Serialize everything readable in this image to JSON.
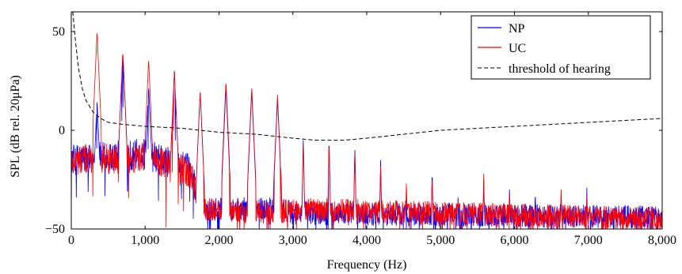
{
  "chart_data": {
    "type": "line",
    "xlabel": "Frequency (Hz)",
    "ylabel": "SPL (dB rel. 20μPa)",
    "xlim": [
      0,
      8000
    ],
    "ylim": [
      -50,
      60
    ],
    "xticks": [
      0,
      1000,
      2000,
      3000,
      4000,
      5000,
      6000,
      7000,
      8000
    ],
    "xtick_labels": [
      "0",
      "1,000",
      "2,000",
      "3,000",
      "4,000",
      "5,000",
      "6,000",
      "7,000",
      "8,000"
    ],
    "yticks": [
      -50,
      0,
      50
    ],
    "ytick_labels": [
      "−50",
      "0",
      "50"
    ],
    "grid": false,
    "legend_position": "top-right",
    "series": [
      {
        "name": "NP",
        "color": "#0000ff",
        "style": "solid",
        "fundamental_hz": 349,
        "harmonic_peaks_db": [
          [
            349,
            15
          ],
          [
            698,
            40
          ],
          [
            1047,
            22
          ],
          [
            1396,
            30
          ],
          [
            1745,
            20
          ],
          [
            2094,
            22
          ],
          [
            2443,
            20
          ],
          [
            2792,
            16
          ],
          [
            3141,
            -3
          ],
          [
            3490,
            -4
          ],
          [
            3839,
            -8
          ],
          [
            4188,
            -15
          ],
          [
            4537,
            -28
          ],
          [
            4886,
            -20
          ],
          [
            5235,
            -32
          ],
          [
            5584,
            -25
          ],
          [
            5933,
            -28
          ],
          [
            6282,
            -30
          ],
          [
            6631,
            -34
          ],
          [
            6980,
            -29
          ],
          [
            7329,
            -38
          ],
          [
            7678,
            -40
          ],
          [
            7980,
            -42
          ]
        ],
        "broadband_floor": [
          [
            0,
            -15
          ],
          [
            1000,
            -12
          ],
          [
            1600,
            -20
          ],
          [
            1800,
            -40
          ],
          [
            2800,
            -40
          ],
          [
            3000,
            -42
          ],
          [
            8000,
            -44
          ]
        ]
      },
      {
        "name": "UC",
        "color": "#ff0000",
        "style": "solid",
        "fundamental_hz": 349,
        "harmonic_peaks_db": [
          [
            349,
            50
          ],
          [
            698,
            40
          ],
          [
            1047,
            36
          ],
          [
            1396,
            30
          ],
          [
            1745,
            20
          ],
          [
            2094,
            25
          ],
          [
            2443,
            22
          ],
          [
            2792,
            18
          ],
          [
            3141,
            -5
          ],
          [
            3490,
            -5
          ],
          [
            3839,
            -10
          ],
          [
            4188,
            -18
          ],
          [
            4537,
            -25
          ],
          [
            4886,
            -22
          ],
          [
            5235,
            -33
          ],
          [
            5584,
            -22
          ],
          [
            5933,
            -30
          ],
          [
            6282,
            -35
          ],
          [
            6631,
            -28
          ],
          [
            6980,
            -33
          ],
          [
            7329,
            -38
          ],
          [
            7678,
            -40
          ],
          [
            7980,
            -44
          ]
        ],
        "broadband_floor": [
          [
            0,
            -15
          ],
          [
            1000,
            -14
          ],
          [
            1600,
            -22
          ],
          [
            1800,
            -40
          ],
          [
            2800,
            -42
          ],
          [
            3000,
            -40
          ],
          [
            8000,
            -45
          ]
        ]
      },
      {
        "name": "threshold of hearing",
        "color": "#000000",
        "style": "dashed",
        "x": [
          20,
          40,
          60,
          80,
          100,
          150,
          200,
          300,
          400,
          500,
          700,
          1000,
          1500,
          2000,
          2500,
          3000,
          3300,
          3500,
          3700,
          4000,
          4500,
          5000,
          6000,
          7000,
          8000
        ],
        "y": [
          60,
          52,
          44,
          37,
          31,
          21,
          15,
          9,
          6,
          4,
          3,
          2,
          1,
          -1,
          -2,
          -4,
          -5,
          -5,
          -5,
          -4,
          -2,
          0,
          2,
          4,
          6
        ]
      }
    ]
  }
}
